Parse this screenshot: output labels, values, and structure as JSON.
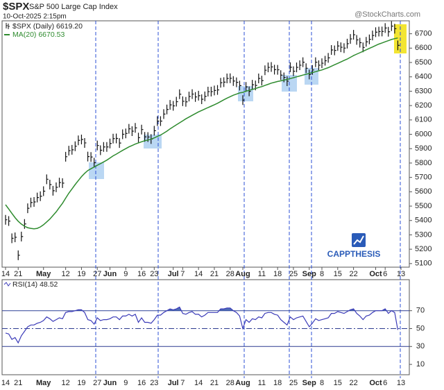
{
  "chart_data": {
    "type": "ohlc-rsi",
    "title": "$SPX",
    "subtitle": "S&P 500 Large Cap Index",
    "date": "10-Oct-2025 2:15pm",
    "source": "@StockCharts.com",
    "watermark": "CAPPTHESIS",
    "categories": [
      "14",
      null,
      null,
      null,
      "21",
      null,
      null,
      null,
      null,
      null,
      null,
      null,
      "May",
      null,
      null,
      null,
      null,
      null,
      null,
      "12",
      null,
      null,
      null,
      null,
      "19",
      null,
      null,
      null,
      null,
      "27",
      null,
      null,
      null,
      "Jun",
      null,
      null,
      null,
      null,
      "9",
      null,
      null,
      null,
      null,
      "16",
      null,
      null,
      null,
      "23",
      null,
      null,
      null,
      null,
      null,
      "Jul",
      null,
      null,
      "7",
      null,
      null,
      null,
      null,
      "14",
      null,
      null,
      null,
      null,
      "21",
      null,
      null,
      null,
      null,
      "28",
      null,
      null,
      null,
      "Aug",
      null,
      null,
      null,
      null,
      null,
      "11",
      null,
      null,
      null,
      null,
      "18",
      null,
      null,
      null,
      null,
      "25",
      null,
      null,
      null,
      null,
      "Sep",
      null,
      null,
      null,
      "8",
      null,
      null,
      null,
      null,
      "15",
      null,
      null,
      null,
      null,
      "22",
      null,
      null,
      null,
      null,
      null,
      null,
      "Oct",
      null,
      null,
      "6",
      null,
      null,
      null,
      null,
      "13"
    ],
    "series": [
      {
        "name": "$SPX (Daily) 6619.20",
        "color": "#111111",
        "values": [
          5405,
          5396,
          5276,
          5283,
          5158,
          5288,
          5376,
          5485,
          5525,
          5529,
          5560,
          5569,
          5604,
          5687,
          5650,
          5607,
          5631,
          5664,
          5660,
          5844,
          5886,
          5892,
          5917,
          5958,
          5964,
          5940,
          5845,
          5842,
          5802,
          5922,
          5889,
          5912,
          5912,
          5936,
          5970,
          5971,
          5939,
          6000,
          6006,
          6038,
          6022,
          6045,
          5977,
          6033,
          5982,
          5981,
          5967,
          6025,
          6092,
          6092,
          6141,
          6173,
          6205,
          6198,
          6227,
          6279,
          6230,
          6226,
          6263,
          6280,
          6260,
          6269,
          6244,
          6264,
          6297,
          6297,
          6305,
          6309,
          6359,
          6363,
          6389,
          6390,
          6371,
          6362,
          6339,
          6238,
          6330,
          6299,
          6345,
          6340,
          6389,
          6374,
          6446,
          6466,
          6469,
          6450,
          6449,
          6412,
          6396,
          6370,
          6467,
          6439,
          6466,
          6481,
          6502,
          6460,
          6416,
          6448,
          6502,
          6481,
          6495,
          6512,
          6532,
          6587,
          6584,
          6615,
          6606,
          6600,
          6631,
          6664,
          6693,
          6657,
          6638,
          6605,
          6644,
          6661,
          6688,
          6711,
          6715,
          6716,
          6740,
          6714,
          6753,
          6735,
          6619.2,
          null
        ]
      },
      {
        "name": "MA(20) 6670.53",
        "color": "#2e8b2e",
        "values": [
          5510,
          5480,
          5450,
          5420,
          5395,
          5375,
          5360,
          5350,
          5345,
          5342,
          5345,
          5355,
          5370,
          5390,
          5410,
          5435,
          5460,
          5490,
          5520,
          5555,
          5590,
          5620,
          5650,
          5678,
          5705,
          5728,
          5748,
          5760,
          5772,
          5784,
          5796,
          5808,
          5820,
          5835,
          5850,
          5862,
          5875,
          5888,
          5900,
          5912,
          5922,
          5932,
          5940,
          5948,
          5955,
          5960,
          5966,
          5975,
          5985,
          5995,
          6008,
          6022,
          6038,
          6052,
          6066,
          6080,
          6094,
          6108,
          6120,
          6132,
          6144,
          6156,
          6166,
          6176,
          6186,
          6196,
          6206,
          6216,
          6228,
          6240,
          6252,
          6262,
          6272,
          6280,
          6288,
          6292,
          6300,
          6306,
          6312,
          6318,
          6326,
          6332,
          6340,
          6348,
          6356,
          6362,
          6368,
          6372,
          6378,
          6382,
          6388,
          6394,
          6400,
          6406,
          6412,
          6418,
          6424,
          6430,
          6436,
          6442,
          6448,
          6456,
          6464,
          6474,
          6484,
          6494,
          6504,
          6514,
          6524,
          6536,
          6548,
          6558,
          6568,
          6578,
          6588,
          6598,
          6608,
          6618,
          6628,
          6636,
          6644,
          6652,
          6660,
          6666,
          6670.53,
          null
        ]
      }
    ],
    "ylim": [
      5075,
      6790
    ],
    "yticks": [
      5100,
      5200,
      5300,
      5400,
      5500,
      5600,
      5700,
      5800,
      5900,
      6000,
      6100,
      6200,
      6300,
      6400,
      6500,
      6600,
      6700
    ],
    "rsi": {
      "name": "RSI(14) 48.52",
      "color": "#3a3ab8",
      "fill": "#3355aa",
      "values": [
        45,
        44,
        38,
        40,
        34,
        42,
        47,
        52,
        54,
        54,
        56,
        57,
        59,
        63,
        61,
        58,
        60,
        62,
        61,
        68,
        69,
        69,
        70,
        71,
        71,
        68,
        60,
        59,
        55,
        62,
        59,
        60,
        60,
        61,
        63,
        63,
        60,
        64,
        64,
        66,
        64,
        66,
        57,
        62,
        57,
        57,
        56,
        60,
        65,
        65,
        68,
        70,
        72,
        71,
        72,
        74,
        67,
        66,
        68,
        69,
        66,
        66,
        63,
        65,
        68,
        68,
        68,
        68,
        72,
        72,
        73,
        73,
        70,
        68,
        64,
        50,
        60,
        57,
        61,
        60,
        63,
        62,
        67,
        68,
        68,
        66,
        65,
        60,
        57,
        54,
        63,
        60,
        62,
        63,
        64,
        58,
        52,
        56,
        61,
        59,
        60,
        61,
        62,
        67,
        67,
        69,
        68,
        67,
        69,
        71,
        72,
        67,
        64,
        60,
        64,
        65,
        68,
        70,
        70,
        70,
        72,
        67,
        70,
        68,
        48.52,
        null
      ],
      "ylim": [
        0,
        100
      ],
      "yticks": [
        10,
        30,
        50,
        70
      ],
      "levels": [
        70,
        50,
        30
      ]
    }
  }
}
